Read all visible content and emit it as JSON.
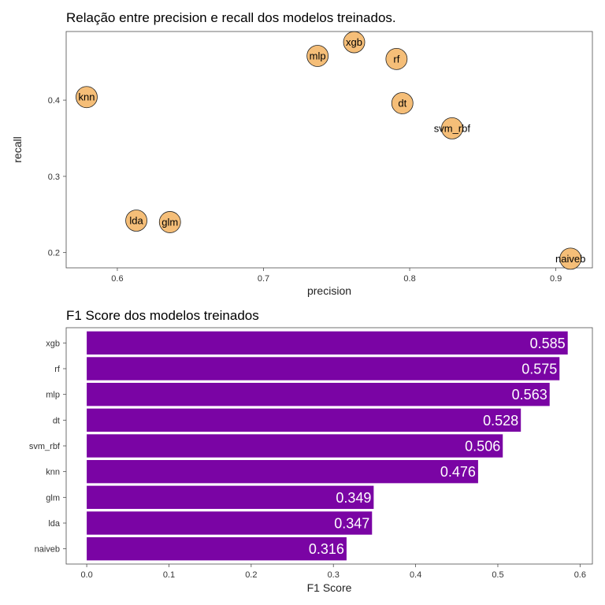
{
  "chart_data": [
    {
      "type": "scatter",
      "title": "Relação entre precision e recall dos modelos treinados.",
      "xlabel": "precision",
      "ylabel": "recall",
      "xlim": [
        0.565,
        0.925
      ],
      "ylim": [
        0.18,
        0.49
      ],
      "xticks": [
        0.6,
        0.7,
        0.8,
        0.9
      ],
      "yticks": [
        0.2,
        0.3,
        0.4
      ],
      "xtick_labels": [
        "0.6",
        "0.7",
        "0.8",
        "0.9"
      ],
      "ytick_labels": [
        "0.2",
        "0.3",
        "0.4"
      ],
      "grid": false,
      "point_color": "#F5BE78",
      "points": [
        {
          "label": "xgb",
          "x": 0.762,
          "y": 0.476
        },
        {
          "label": "mlp",
          "x": 0.737,
          "y": 0.458
        },
        {
          "label": "rf",
          "x": 0.791,
          "y": 0.454
        },
        {
          "label": "knn",
          "x": 0.579,
          "y": 0.404
        },
        {
          "label": "dt",
          "x": 0.795,
          "y": 0.396
        },
        {
          "label": "svm_rbf",
          "x": 0.829,
          "y": 0.363
        },
        {
          "label": "lda",
          "x": 0.613,
          "y": 0.242
        },
        {
          "label": "glm",
          "x": 0.636,
          "y": 0.24
        },
        {
          "label": "naiveb",
          "x": 0.91,
          "y": 0.192
        }
      ]
    },
    {
      "type": "bar",
      "orientation": "horizontal",
      "title": "F1 Score dos modelos treinados",
      "xlabel": "F1 Score",
      "ylabel": "",
      "xlim": [
        -0.025,
        0.615
      ],
      "xticks": [
        0.0,
        0.1,
        0.2,
        0.3,
        0.4,
        0.5,
        0.6
      ],
      "xtick_labels": [
        "0.0",
        "0.1",
        "0.2",
        "0.3",
        "0.4",
        "0.5",
        "0.6"
      ],
      "grid": false,
      "bar_color": "#7A04A4",
      "label_color": "#FFFFFF",
      "categories": [
        "xgb",
        "rf",
        "mlp",
        "dt",
        "svm_rbf",
        "knn",
        "glm",
        "lda",
        "naiveb"
      ],
      "values": [
        0.585,
        0.575,
        0.563,
        0.528,
        0.506,
        0.476,
        0.349,
        0.347,
        0.316
      ],
      "value_labels": [
        "0.585",
        "0.575",
        "0.563",
        "0.528",
        "0.506",
        "0.476",
        "0.349",
        "0.347",
        "0.316"
      ]
    }
  ]
}
